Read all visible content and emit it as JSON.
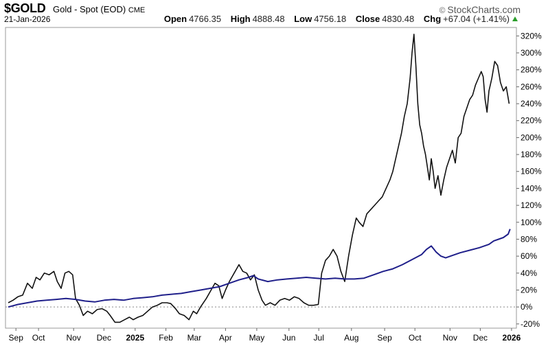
{
  "header": {
    "ticker": "$GOLD",
    "name": "Gold - Spot (EOD)",
    "exchange": "CME",
    "brand": "StockCharts.com",
    "brand_icon": "copyright-icon",
    "date": "21-Jan-2026",
    "open_label": "Open",
    "open": "4766.35",
    "high_label": "High",
    "high": "4888.48",
    "low_label": "Low",
    "low": "4756.18",
    "close_label": "Close",
    "close": "4830.48",
    "chg_label": "Chg",
    "chg": "+67.04 (+1.41%)",
    "chg_icon": "up-triangle-icon",
    "colors": {
      "up": "#2a9d2a"
    }
  },
  "chart_data": {
    "type": "line",
    "title": "",
    "xlabel": "",
    "ylabel": "",
    "ylim": [
      -25,
      330
    ],
    "yticks": [
      -20,
      0,
      20,
      40,
      60,
      80,
      100,
      120,
      140,
      160,
      180,
      200,
      220,
      240,
      260,
      280,
      300,
      320
    ],
    "ytick_suffix": "%",
    "y_axis_side": "right",
    "grid": "horizontal-zero-dashed",
    "x_range": [
      0,
      1
    ],
    "x_ticks": [
      {
        "label": "Sep",
        "x": 0.016,
        "bold": false
      },
      {
        "label": "Oct",
        "x": 0.063,
        "bold": false
      },
      {
        "label": "Nov",
        "x": 0.136,
        "bold": false
      },
      {
        "label": "Dec",
        "x": 0.199,
        "bold": false
      },
      {
        "label": "2025",
        "x": 0.264,
        "bold": true
      },
      {
        "label": "Feb",
        "x": 0.328,
        "bold": false
      },
      {
        "label": "Mar",
        "x": 0.387,
        "bold": false
      },
      {
        "label": "Apr",
        "x": 0.452,
        "bold": false
      },
      {
        "label": "May",
        "x": 0.517,
        "bold": false
      },
      {
        "label": "Jun",
        "x": 0.584,
        "bold": false
      },
      {
        "label": "Jul",
        "x": 0.646,
        "bold": false
      },
      {
        "label": "Aug",
        "x": 0.714,
        "bold": false
      },
      {
        "label": "Sep",
        "x": 0.783,
        "bold": false
      },
      {
        "label": "Oct",
        "x": 0.846,
        "bold": false
      },
      {
        "label": "Nov",
        "x": 0.919,
        "bold": false
      },
      {
        "label": "Dec",
        "x": 0.982,
        "bold": false
      },
      {
        "label": "2026",
        "x": 1.047,
        "bold": true
      }
    ],
    "series": [
      {
        "name": "",
        "color": "#111111",
        "points": [
          [
            0.0,
            5
          ],
          [
            0.01,
            8
          ],
          [
            0.02,
            12
          ],
          [
            0.03,
            14
          ],
          [
            0.04,
            28
          ],
          [
            0.05,
            22
          ],
          [
            0.058,
            35
          ],
          [
            0.066,
            32
          ],
          [
            0.075,
            40
          ],
          [
            0.085,
            38
          ],
          [
            0.095,
            42
          ],
          [
            0.102,
            30
          ],
          [
            0.11,
            22
          ],
          [
            0.118,
            40
          ],
          [
            0.126,
            42
          ],
          [
            0.134,
            38
          ],
          [
            0.14,
            10
          ],
          [
            0.148,
            2
          ],
          [
            0.156,
            -10
          ],
          [
            0.165,
            -5
          ],
          [
            0.175,
            -8
          ],
          [
            0.185,
            -3
          ],
          [
            0.195,
            -2
          ],
          [
            0.205,
            -5
          ],
          [
            0.212,
            -10
          ],
          [
            0.222,
            -18
          ],
          [
            0.232,
            -18
          ],
          [
            0.242,
            -15
          ],
          [
            0.252,
            -12
          ],
          [
            0.26,
            -15
          ],
          [
            0.27,
            -12
          ],
          [
            0.28,
            -10
          ],
          [
            0.29,
            -5
          ],
          [
            0.3,
            0
          ],
          [
            0.31,
            2
          ],
          [
            0.32,
            5
          ],
          [
            0.33,
            5
          ],
          [
            0.338,
            4
          ],
          [
            0.348,
            -2
          ],
          [
            0.356,
            -8
          ],
          [
            0.366,
            -10
          ],
          [
            0.376,
            -15
          ],
          [
            0.385,
            -5
          ],
          [
            0.392,
            -8
          ],
          [
            0.4,
            0
          ],
          [
            0.412,
            10
          ],
          [
            0.422,
            20
          ],
          [
            0.43,
            28
          ],
          [
            0.438,
            25
          ],
          [
            0.445,
            10
          ],
          [
            0.452,
            20
          ],
          [
            0.46,
            30
          ],
          [
            0.47,
            40
          ],
          [
            0.48,
            50
          ],
          [
            0.488,
            42
          ],
          [
            0.496,
            40
          ],
          [
            0.504,
            32
          ],
          [
            0.512,
            38
          ],
          [
            0.52,
            20
          ],
          [
            0.528,
            8
          ],
          [
            0.535,
            2
          ],
          [
            0.545,
            5
          ],
          [
            0.555,
            2
          ],
          [
            0.565,
            8
          ],
          [
            0.575,
            10
          ],
          [
            0.585,
            8
          ],
          [
            0.595,
            12
          ],
          [
            0.605,
            10
          ],
          [
            0.615,
            5
          ],
          [
            0.625,
            2
          ],
          [
            0.635,
            2
          ],
          [
            0.645,
            3
          ],
          [
            0.652,
            40
          ],
          [
            0.66,
            55
          ],
          [
            0.668,
            60
          ],
          [
            0.676,
            68
          ],
          [
            0.684,
            60
          ],
          [
            0.692,
            42
          ],
          [
            0.7,
            30
          ],
          [
            0.708,
            60
          ],
          [
            0.716,
            85
          ],
          [
            0.724,
            105
          ],
          [
            0.73,
            100
          ],
          [
            0.738,
            95
          ],
          [
            0.746,
            110
          ],
          [
            0.754,
            115
          ],
          [
            0.762,
            120
          ],
          [
            0.77,
            125
          ],
          [
            0.778,
            130
          ],
          [
            0.786,
            140
          ],
          [
            0.794,
            150
          ],
          [
            0.8,
            160
          ],
          [
            0.806,
            175
          ],
          [
            0.812,
            190
          ],
          [
            0.818,
            205
          ],
          [
            0.824,
            225
          ],
          [
            0.83,
            240
          ],
          [
            0.836,
            270
          ],
          [
            0.84,
            300
          ],
          [
            0.844,
            322
          ],
          [
            0.848,
            285
          ],
          [
            0.852,
            240
          ],
          [
            0.856,
            215
          ],
          [
            0.86,
            205
          ],
          [
            0.864,
            190
          ],
          [
            0.868,
            180
          ],
          [
            0.872,
            165
          ],
          [
            0.876,
            150
          ],
          [
            0.88,
            175
          ],
          [
            0.884,
            160
          ],
          [
            0.888,
            140
          ],
          [
            0.894,
            155
          ],
          [
            0.9,
            132
          ],
          [
            0.906,
            150
          ],
          [
            0.912,
            165
          ],
          [
            0.918,
            175
          ],
          [
            0.924,
            185
          ],
          [
            0.93,
            170
          ],
          [
            0.936,
            200
          ],
          [
            0.942,
            205
          ],
          [
            0.948,
            225
          ],
          [
            0.954,
            235
          ],
          [
            0.96,
            245
          ],
          [
            0.966,
            250
          ],
          [
            0.972,
            262
          ],
          [
            0.978,
            270
          ],
          [
            0.984,
            278
          ],
          [
            0.988,
            272
          ],
          [
            0.992,
            245
          ],
          [
            0.996,
            230
          ],
          [
            1.0,
            255
          ],
          [
            1.006,
            270
          ],
          [
            1.012,
            290
          ],
          [
            1.018,
            285
          ],
          [
            1.024,
            265
          ],
          [
            1.03,
            255
          ],
          [
            1.036,
            260
          ],
          [
            1.042,
            240
          ]
        ]
      },
      {
        "name": "",
        "color": "#1f1f8a",
        "points": [
          [
            0.0,
            0
          ],
          [
            0.02,
            3
          ],
          [
            0.04,
            5
          ],
          [
            0.06,
            7
          ],
          [
            0.08,
            8
          ],
          [
            0.1,
            9
          ],
          [
            0.12,
            10
          ],
          [
            0.14,
            9
          ],
          [
            0.16,
            7
          ],
          [
            0.18,
            6
          ],
          [
            0.2,
            8
          ],
          [
            0.22,
            9
          ],
          [
            0.24,
            8
          ],
          [
            0.26,
            10
          ],
          [
            0.28,
            11
          ],
          [
            0.3,
            12
          ],
          [
            0.32,
            14
          ],
          [
            0.34,
            15
          ],
          [
            0.36,
            16
          ],
          [
            0.38,
            18
          ],
          [
            0.4,
            20
          ],
          [
            0.42,
            22
          ],
          [
            0.44,
            24
          ],
          [
            0.46,
            28
          ],
          [
            0.48,
            32
          ],
          [
            0.5,
            35
          ],
          [
            0.51,
            37
          ],
          [
            0.52,
            33
          ],
          [
            0.54,
            30
          ],
          [
            0.56,
            32
          ],
          [
            0.58,
            33
          ],
          [
            0.6,
            34
          ],
          [
            0.62,
            35
          ],
          [
            0.64,
            34
          ],
          [
            0.66,
            33
          ],
          [
            0.68,
            34
          ],
          [
            0.7,
            33
          ],
          [
            0.72,
            33
          ],
          [
            0.74,
            34
          ],
          [
            0.76,
            38
          ],
          [
            0.78,
            42
          ],
          [
            0.8,
            45
          ],
          [
            0.82,
            50
          ],
          [
            0.84,
            56
          ],
          [
            0.86,
            62
          ],
          [
            0.87,
            68
          ],
          [
            0.88,
            72
          ],
          [
            0.89,
            65
          ],
          [
            0.9,
            60
          ],
          [
            0.91,
            58
          ],
          [
            0.92,
            60
          ],
          [
            0.94,
            64
          ],
          [
            0.96,
            67
          ],
          [
            0.98,
            70
          ],
          [
            1.0,
            74
          ],
          [
            1.01,
            78
          ],
          [
            1.02,
            80
          ],
          [
            1.03,
            82
          ],
          [
            1.04,
            86
          ],
          [
            1.044,
            92
          ]
        ]
      }
    ]
  }
}
